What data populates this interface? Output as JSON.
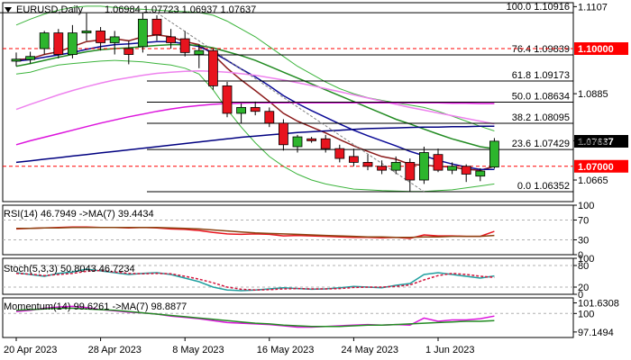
{
  "header": {
    "symbol": "EURUSD,Daily",
    "ohlc": "1.06984 1.07723 1.06937 1.07637"
  },
  "colors": {
    "bull": "#2db52d",
    "bear": "#e8141e",
    "bb": "#3cb43c",
    "ma_fast": "#8b1a1a",
    "ma_mid": "#0a0a96",
    "ma_slow": "#228b22",
    "ma_pink": "#ee82ee",
    "ma_magenta": "#dc14dc",
    "dark_blue": "#000080",
    "price_tag": "#ff0000",
    "current_tag": "#000000"
  },
  "chart_data": [
    {
      "type": "candlestick",
      "title": "EURUSD,Daily",
      "ylim": [
        1.061,
        1.1117
      ],
      "y_ticks": [
        1.1107,
        1.0885,
        1.0765,
        1.0665
      ],
      "x_tick_labels": [
        "20 Apr 2023",
        "28 Apr 2023",
        "8 May 2023",
        "16 May 2023",
        "24 May 2023",
        "1 Jun 2023"
      ],
      "x_tick_index": [
        0,
        6,
        12,
        18,
        24,
        30
      ],
      "candles": [
        {
          "o": 1.0968,
          "h": 1.099,
          "l": 1.0955,
          "c": 1.0973
        },
        {
          "o": 1.0972,
          "h": 1.0992,
          "l": 1.0962,
          "c": 1.098
        },
        {
          "o": 1.1,
          "h": 1.1045,
          "l": 1.0985,
          "c": 1.104
        },
        {
          "o": 1.104,
          "h": 1.105,
          "l": 1.0975,
          "c": 1.0985
        },
        {
          "o": 1.0985,
          "h": 1.106,
          "l": 1.0975,
          "c": 1.104
        },
        {
          "o": 1.104,
          "h": 1.109,
          "l": 1.102,
          "c": 1.1045
        },
        {
          "o": 1.1045,
          "h": 1.1055,
          "l": 1.0995,
          "c": 1.1015
        },
        {
          "o": 1.1015,
          "h": 1.1045,
          "l": 1.0985,
          "c": 1.103
        },
        {
          "o": 1.1,
          "h": 1.102,
          "l": 1.096,
          "c": 1.0985
        },
        {
          "o": 1.1005,
          "h": 1.1092,
          "l": 1.099,
          "c": 1.1075
        },
        {
          "o": 1.1075,
          "h": 1.1085,
          "l": 1.102,
          "c": 1.1035
        },
        {
          "o": 1.103,
          "h": 1.105,
          "l": 1.1,
          "c": 1.1015
        },
        {
          "o": 1.1025,
          "h": 1.1045,
          "l": 1.098,
          "c": 1.099
        },
        {
          "o": 1.0985,
          "h": 1.101,
          "l": 1.095,
          "c": 1.0995
        },
        {
          "o": 1.0995,
          "h": 1.1,
          "l": 1.0895,
          "c": 1.0905
        },
        {
          "o": 1.0905,
          "h": 1.0915,
          "l": 1.0825,
          "c": 1.0835
        },
        {
          "o": 1.0835,
          "h": 1.086,
          "l": 1.081,
          "c": 1.085
        },
        {
          "o": 1.085,
          "h": 1.0865,
          "l": 1.083,
          "c": 1.084
        },
        {
          "o": 1.084,
          "h": 1.085,
          "l": 1.08,
          "c": 1.081
        },
        {
          "o": 1.081,
          "h": 1.082,
          "l": 1.074,
          "c": 1.0755
        },
        {
          "o": 1.075,
          "h": 1.078,
          "l": 1.0735,
          "c": 1.0775
        },
        {
          "o": 1.077,
          "h": 1.0775,
          "l": 1.076,
          "c": 1.0765
        },
        {
          "o": 1.077,
          "h": 1.078,
          "l": 1.0735,
          "c": 1.0745
        },
        {
          "o": 1.0745,
          "h": 1.0755,
          "l": 1.071,
          "c": 1.072
        },
        {
          "o": 1.0725,
          "h": 1.0745,
          "l": 1.07,
          "c": 1.071
        },
        {
          "o": 1.071,
          "h": 1.073,
          "l": 1.069,
          "c": 1.07
        },
        {
          "o": 1.07,
          "h": 1.0715,
          "l": 1.068,
          "c": 1.069
        },
        {
          "o": 1.069,
          "h": 1.0725,
          "l": 1.068,
          "c": 1.071
        },
        {
          "o": 1.071,
          "h": 1.072,
          "l": 1.0635,
          "c": 1.0665
        },
        {
          "o": 1.0665,
          "h": 1.075,
          "l": 1.0655,
          "c": 1.0735
        },
        {
          "o": 1.073,
          "h": 1.0745,
          "l": 1.0685,
          "c": 1.069
        },
        {
          "o": 1.069,
          "h": 1.071,
          "l": 1.068,
          "c": 1.07
        },
        {
          "o": 1.07,
          "h": 1.0705,
          "l": 1.066,
          "c": 1.068
        },
        {
          "o": 1.0675,
          "h": 1.0695,
          "l": 1.0662,
          "c": 1.0688
        },
        {
          "o": 1.0698,
          "h": 1.0772,
          "l": 1.0694,
          "c": 1.0764
        }
      ],
      "fib_levels": [
        {
          "label": "100.0 1.10916",
          "value": 1.10916
        },
        {
          "label": "76.4 1.09839",
          "value": 1.09839
        },
        {
          "label": "61.8 1.09173",
          "value": 1.09173
        },
        {
          "label": "50.0 1.08634",
          "value": 1.08634
        },
        {
          "label": "38.2 1.08095",
          "value": 1.08095
        },
        {
          "label": "23.6 1.07429",
          "value": 1.07429
        },
        {
          "label": "0.0 1.06352",
          "value": 1.06352
        }
      ],
      "price_tags": [
        {
          "label": "1.10000",
          "value": 1.1,
          "kind": "level"
        },
        {
          "label": "1.07000",
          "value": 1.07,
          "kind": "level"
        },
        {
          "label": "1.07637",
          "value": 1.07637,
          "kind": "current"
        }
      ],
      "overlays": [
        {
          "key": "bb_upper",
          "color": "#3cb43c",
          "values": [
            1.106,
            1.1075,
            1.1088,
            1.1098,
            1.1105,
            1.1108,
            1.1108,
            1.1105,
            1.1102,
            1.11,
            1.1098,
            1.1096,
            1.1094,
            1.1092,
            1.1085,
            1.107,
            1.105,
            1.103,
            1.1005,
            1.098,
            1.0955,
            1.0935,
            1.0915,
            1.0898,
            1.0885,
            1.0875,
            1.0868,
            1.0862,
            1.0856,
            1.085,
            1.084,
            1.0828,
            1.0815,
            1.0802,
            1.079
          ]
        },
        {
          "key": "bb_lower",
          "color": "#3cb43c",
          "values": [
            1.0935,
            1.094,
            1.095,
            1.0958,
            1.0962,
            1.0965,
            1.0968,
            1.097,
            1.0968,
            1.0966,
            1.0962,
            1.0958,
            1.095,
            1.0935,
            1.0895,
            1.0845,
            1.08,
            1.076,
            1.0725,
            1.07,
            1.068,
            1.0665,
            1.0655,
            1.0648,
            1.0642,
            1.064,
            1.0638,
            1.0637,
            1.0636,
            1.0636,
            1.0638,
            1.064,
            1.0645,
            1.065,
            1.0655
          ]
        },
        {
          "key": "ma_fast",
          "color": "#8b1a1a",
          "values": [
            1.0972,
            1.0974,
            1.0985,
            1.0992,
            1.1005,
            1.1018,
            1.1022,
            1.1025,
            1.102,
            1.103,
            1.1035,
            1.103,
            1.1018,
            1.101,
            1.0985,
            1.095,
            1.092,
            1.0893,
            1.0865,
            1.0835,
            1.0815,
            1.08,
            1.0785,
            1.0768,
            1.0752,
            1.0738,
            1.0725,
            1.0718,
            1.0705,
            1.0703,
            1.07,
            1.0698,
            1.0692,
            1.069,
            1.07
          ]
        },
        {
          "key": "ma_mid",
          "color": "#0a0a96",
          "values": [
            1.0968,
            1.0972,
            1.0978,
            1.0984,
            1.099,
            1.0998,
            1.1005,
            1.101,
            1.1012,
            1.1015,
            1.1018,
            1.1018,
            1.1012,
            1.1005,
            1.099,
            1.097,
            1.0948,
            1.0928,
            1.0905,
            1.088,
            1.086,
            1.0842,
            1.0825,
            1.0808,
            1.0792,
            1.0778,
            1.0765,
            1.0752,
            1.0738,
            1.0727,
            1.0715,
            1.0706,
            1.0698,
            1.0692,
            1.0692
          ]
        },
        {
          "key": "ma_slow",
          "color": "#228b22",
          "values": [
            1.0955,
            1.0962,
            1.097,
            1.0978,
            1.0985,
            1.0992,
            1.0997,
            1.1,
            1.1002,
            1.1005,
            1.1008,
            1.101,
            1.101,
            1.1008,
            1.1002,
            1.0992,
            1.0982,
            1.097,
            1.0955,
            1.094,
            1.0925,
            1.091,
            1.0895,
            1.088,
            1.0865,
            1.085,
            1.0835,
            1.082,
            1.0808,
            1.0795,
            1.0782,
            1.077,
            1.076,
            1.075,
            1.0745
          ]
        },
        {
          "key": "ma_pink",
          "color": "#ee82ee",
          "values": [
            1.0845,
            1.0858,
            1.087,
            1.0882,
            1.0893,
            1.0903,
            1.0912,
            1.092,
            1.0926,
            1.0932,
            1.0937,
            1.094,
            1.0942,
            1.0943,
            1.0942,
            1.094,
            1.0936,
            1.0932,
            1.0926,
            1.092,
            1.0913,
            1.0906,
            1.0898,
            1.089,
            1.0882,
            1.0874,
            1.0866,
            1.0858,
            1.085,
            1.0843,
            1.0836,
            1.0829,
            1.0822,
            1.0815,
            1.0808
          ]
        },
        {
          "key": "ma_magenta",
          "color": "#dc14dc",
          "values": [
            1.0755,
            1.0765,
            1.0774,
            1.0783,
            1.0792,
            1.0801,
            1.081,
            1.0818,
            1.0826,
            1.0833,
            1.084,
            1.0846,
            1.0851,
            1.0855,
            1.0858,
            1.086,
            1.0861,
            1.0862,
            1.0862,
            1.0862,
            1.0862,
            1.0862,
            1.0862,
            1.0862,
            1.0862,
            1.0862,
            1.0862,
            1.0862,
            1.0862,
            1.0862,
            1.0862,
            1.0861,
            1.0861,
            1.086,
            1.086
          ]
        },
        {
          "key": "ma_dark",
          "color": "#000080",
          "values": [
            1.071,
            1.0714,
            1.0718,
            1.0722,
            1.0726,
            1.073,
            1.0734,
            1.0738,
            1.0742,
            1.0746,
            1.075,
            1.0754,
            1.0758,
            1.0762,
            1.0766,
            1.077,
            1.0774,
            1.0777,
            1.078,
            1.0783,
            1.0786,
            1.0788,
            1.079,
            1.0792,
            1.0794,
            1.0796,
            1.0797,
            1.0798,
            1.0799,
            1.08,
            1.08,
            1.0801,
            1.0801,
            1.0802,
            1.0802
          ]
        }
      ]
    },
    {
      "type": "line",
      "title": "RSI(14) 46.7949   ->MA(7) 39.4434",
      "ylim": [
        0,
        100
      ],
      "y_ticks": [
        100,
        70,
        30,
        0
      ],
      "dashed_levels": [
        70,
        30
      ],
      "series": [
        {
          "color": "#e8141e",
          "values": [
            52,
            53,
            54,
            55,
            56,
            56,
            55,
            55,
            54,
            55,
            54,
            52,
            51,
            49,
            45,
            42,
            41,
            42,
            41,
            38,
            39,
            38,
            37,
            36,
            35,
            35,
            34,
            35,
            33,
            40,
            38,
            38,
            37,
            37,
            47
          ]
        },
        {
          "color": "#8b4513",
          "values": [
            53,
            53,
            54,
            54,
            55,
            55,
            55,
            55,
            55,
            55,
            55,
            54,
            53,
            52,
            50,
            48,
            46,
            44,
            43,
            42,
            41,
            40,
            39,
            38,
            37,
            36,
            36,
            35,
            35,
            36,
            36,
            37,
            37,
            37,
            39
          ]
        }
      ]
    },
    {
      "type": "line",
      "title": "Stoch(5,3,3) 50.8043 46.7234",
      "ylim": [
        0,
        100
      ],
      "y_ticks": [
        100,
        80,
        20,
        0
      ],
      "dashed_levels": [
        80,
        20
      ],
      "series": [
        {
          "color": "#20a0a0",
          "values": [
            60,
            55,
            50,
            58,
            62,
            70,
            65,
            60,
            55,
            58,
            60,
            55,
            45,
            35,
            20,
            12,
            10,
            12,
            15,
            18,
            16,
            14,
            15,
            18,
            22,
            20,
            18,
            25,
            30,
            55,
            60,
            55,
            50,
            45,
            51
          ]
        },
        {
          "color": "#d2143c",
          "values": [
            58,
            56,
            52,
            55,
            58,
            64,
            66,
            62,
            58,
            57,
            58,
            57,
            50,
            42,
            32,
            20,
            14,
            12,
            13,
            15,
            16,
            15,
            15,
            16,
            19,
            20,
            20,
            22,
            26,
            40,
            52,
            58,
            55,
            50,
            47
          ]
        }
      ]
    },
    {
      "type": "line",
      "title": "Momentum(14) 99.6261   ->MA(7) 98.8877",
      "ylim": [
        96.3,
        102.4
      ],
      "y_ticks": [
        101.6308,
        100,
        97.1494
      ],
      "dashed_levels": [
        100
      ],
      "series": [
        {
          "color": "#dc14dc",
          "values": [
            100.3,
            100.5,
            100.8,
            101.0,
            101.1,
            100.9,
            100.6,
            100.4,
            100.2,
            100.1,
            99.9,
            99.6,
            99.4,
            99.2,
            98.9,
            98.6,
            98.5,
            98.4,
            98.3,
            98.1,
            97.9,
            97.9,
            98.0,
            98.1,
            98.2,
            98.3,
            98.2,
            98.3,
            98.2,
            99.3,
            98.8,
            99.0,
            99.0,
            99.2,
            99.6
          ]
        },
        {
          "color": "#228b22",
          "values": [
            100.5,
            100.6,
            100.7,
            100.8,
            100.8,
            100.7,
            100.6,
            100.5,
            100.3,
            100.1,
            99.9,
            99.7,
            99.5,
            99.3,
            99.1,
            98.9,
            98.7,
            98.5,
            98.4,
            98.2,
            98.1,
            98.0,
            98.0,
            98.0,
            98.1,
            98.2,
            98.2,
            98.3,
            98.4,
            98.5,
            98.6,
            98.7,
            98.8,
            98.8,
            98.9
          ]
        }
      ]
    }
  ]
}
